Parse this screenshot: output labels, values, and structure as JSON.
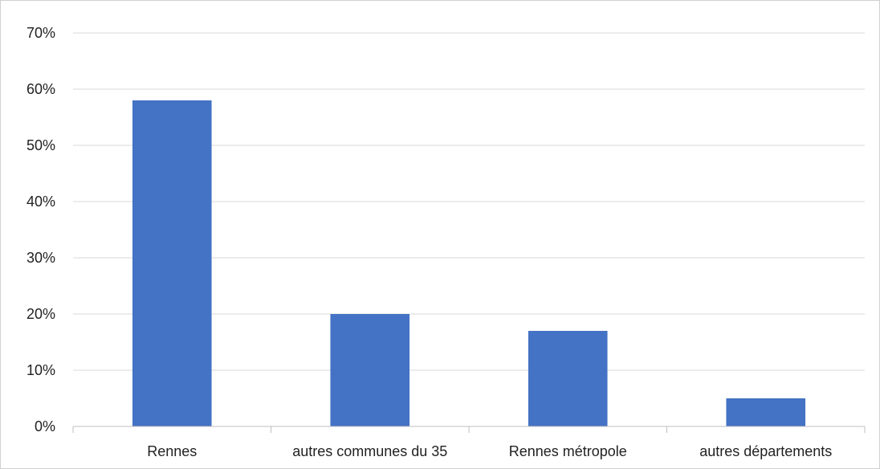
{
  "chart_data": {
    "type": "bar",
    "categories": [
      "Rennes",
      "autres communes du 35",
      "Rennes métropole",
      "autres départements"
    ],
    "values": [
      58,
      20,
      17,
      5
    ],
    "ylim": [
      0,
      70
    ],
    "yticks": [
      0,
      10,
      20,
      30,
      40,
      50,
      60,
      70
    ],
    "ytick_labels": [
      "0%",
      "10%",
      "20%",
      "30%",
      "40%",
      "50%",
      "60%",
      "70%"
    ],
    "grid": true,
    "legend": "none",
    "bar_color": "#4472c4",
    "grid_color": "#d9d9d9"
  }
}
